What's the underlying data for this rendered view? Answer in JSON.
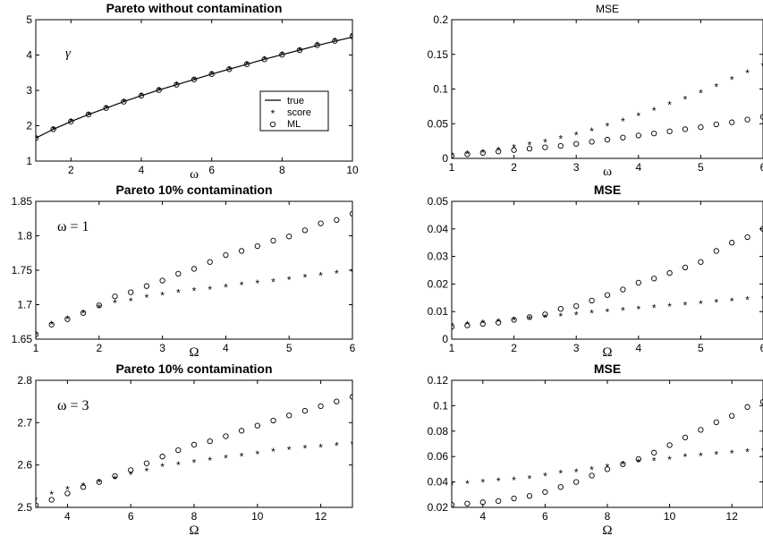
{
  "chart_data": [
    {
      "type": "line",
      "title": "Pareto without contamination",
      "xlabel": "ω",
      "ylabel": "",
      "annotation": "γ",
      "xlim": [
        1,
        10
      ],
      "ylim": [
        1,
        5
      ],
      "xticks": [
        2,
        4,
        6,
        8,
        10
      ],
      "yticks": [
        1,
        2,
        3,
        4,
        5
      ],
      "legend": {
        "placement": "right",
        "entries": [
          "true",
          "score",
          "ML"
        ]
      },
      "x": [
        1,
        1.5,
        2,
        2.5,
        3,
        3.5,
        4,
        4.5,
        5,
        5.5,
        6,
        6.5,
        7,
        7.5,
        8,
        8.5,
        9,
        9.5,
        10
      ],
      "series": [
        {
          "name": "true",
          "style": "line",
          "values": [
            1.65,
            1.9,
            2.12,
            2.32,
            2.5,
            2.68,
            2.85,
            3.01,
            3.16,
            3.31,
            3.46,
            3.6,
            3.74,
            3.88,
            4.01,
            4.14,
            4.27,
            4.39,
            4.51
          ]
        },
        {
          "name": "score",
          "style": "star",
          "values": [
            1.66,
            1.9,
            2.13,
            2.32,
            2.51,
            2.68,
            2.86,
            3.01,
            3.17,
            3.31,
            3.47,
            3.6,
            3.75,
            3.88,
            4.02,
            4.14,
            4.29,
            4.41,
            4.56
          ]
        },
        {
          "name": "ML",
          "style": "circle",
          "values": [
            1.65,
            1.9,
            2.12,
            2.32,
            2.5,
            2.68,
            2.85,
            3.01,
            3.16,
            3.31,
            3.46,
            3.6,
            3.74,
            3.88,
            4.01,
            4.14,
            4.28,
            4.4,
            4.53
          ]
        }
      ]
    },
    {
      "type": "scatter",
      "title": "MSE",
      "xlabel": "ω",
      "ylabel": "",
      "xlim": [
        1,
        6
      ],
      "ylim": [
        0,
        0.2
      ],
      "xticks": [
        1,
        2,
        3,
        4,
        5,
        6
      ],
      "yticks": [
        0,
        0.05,
        0.1,
        0.15,
        0.2
      ],
      "ytick_labels": [
        "0",
        "0.05",
        "0.1",
        "0.15",
        "0.2"
      ],
      "x": [
        1,
        1.25,
        1.5,
        1.75,
        2,
        2.25,
        2.5,
        2.75,
        3,
        3.25,
        3.5,
        3.75,
        4,
        4.25,
        4.5,
        4.75,
        5,
        5.25,
        5.5,
        5.75,
        6
      ],
      "series": [
        {
          "name": "score",
          "style": "star",
          "values": [
            0.005,
            0.007,
            0.009,
            0.012,
            0.016,
            0.02,
            0.024,
            0.029,
            0.034,
            0.04,
            0.047,
            0.054,
            0.062,
            0.07,
            0.078,
            0.086,
            0.095,
            0.104,
            0.114,
            0.124,
            0.134
          ]
        },
        {
          "name": "ML",
          "style": "circle",
          "values": [
            0.004,
            0.006,
            0.008,
            0.01,
            0.012,
            0.014,
            0.016,
            0.018,
            0.021,
            0.024,
            0.027,
            0.03,
            0.033,
            0.036,
            0.039,
            0.042,
            0.045,
            0.049,
            0.052,
            0.056,
            0.06
          ]
        }
      ]
    },
    {
      "type": "scatter",
      "title": "Pareto 10% contamination",
      "xlabel": "Ω",
      "ylabel": "",
      "annotation": "ω = 1",
      "xlim": [
        1,
        6
      ],
      "ylim": [
        1.65,
        1.85
      ],
      "xticks": [
        1,
        2,
        3,
        4,
        5,
        6
      ],
      "yticks": [
        1.65,
        1.7,
        1.75,
        1.8,
        1.85
      ],
      "ytick_labels": [
        "1.65",
        "1.7",
        "1.75",
        "1.8",
        "1.85"
      ],
      "x": [
        1,
        1.25,
        1.5,
        1.75,
        2,
        2.25,
        2.5,
        2.75,
        3,
        3.25,
        3.5,
        3.75,
        4,
        4.25,
        4.5,
        4.75,
        5,
        5.25,
        5.5,
        5.75,
        6
      ],
      "series": [
        {
          "name": "score",
          "style": "star",
          "values": [
            1.657,
            1.672,
            1.68,
            1.688,
            1.696,
            1.703,
            1.706,
            1.711,
            1.714,
            1.718,
            1.721,
            1.723,
            1.726,
            1.729,
            1.732,
            1.734,
            1.737,
            1.74,
            1.743,
            1.746,
            1.749
          ]
        },
        {
          "name": "ML",
          "style": "circle",
          "values": [
            1.657,
            1.671,
            1.679,
            1.688,
            1.699,
            1.712,
            1.718,
            1.727,
            1.735,
            1.745,
            1.752,
            1.762,
            1.772,
            1.778,
            1.785,
            1.793,
            1.799,
            1.808,
            1.818,
            1.823,
            1.832
          ]
        }
      ]
    },
    {
      "type": "scatter",
      "title": "MSE",
      "xlabel": "Ω",
      "ylabel": "",
      "xlim": [
        1,
        6
      ],
      "ylim": [
        0,
        0.05
      ],
      "xticks": [
        1,
        2,
        3,
        4,
        5,
        6
      ],
      "yticks": [
        0,
        0.01,
        0.02,
        0.03,
        0.04,
        0.05
      ],
      "ytick_labels": [
        "0",
        "0.01",
        "0.02",
        "0.03",
        "0.04",
        "0.05"
      ],
      "x": [
        1,
        1.25,
        1.5,
        1.75,
        2,
        2.25,
        2.5,
        2.75,
        3,
        3.25,
        3.5,
        3.75,
        4,
        4.25,
        4.5,
        4.75,
        5,
        5.25,
        5.5,
        5.75,
        6
      ],
      "series": [
        {
          "name": "score",
          "style": "star",
          "values": [
            0.005,
            0.0055,
            0.006,
            0.0065,
            0.007,
            0.0075,
            0.008,
            0.0085,
            0.009,
            0.0095,
            0.01,
            0.0105,
            0.011,
            0.0115,
            0.012,
            0.0125,
            0.013,
            0.0135,
            0.014,
            0.0145,
            0.015
          ]
        },
        {
          "name": "ML",
          "style": "circle",
          "values": [
            0.0045,
            0.005,
            0.0055,
            0.006,
            0.007,
            0.008,
            0.009,
            0.011,
            0.012,
            0.014,
            0.016,
            0.018,
            0.0205,
            0.022,
            0.024,
            0.026,
            0.028,
            0.032,
            0.035,
            0.037,
            0.04
          ]
        }
      ]
    },
    {
      "type": "scatter",
      "title": "Pareto 10% contamination",
      "xlabel": "Ω",
      "ylabel": "",
      "annotation": "ω = 3",
      "xlim": [
        3,
        13
      ],
      "ylim": [
        2.5,
        2.8
      ],
      "xticks": [
        4,
        6,
        8,
        10,
        12
      ],
      "yticks": [
        2.5,
        2.6,
        2.7,
        2.8
      ],
      "ytick_labels": [
        "2.5",
        "2.6",
        "2.7",
        "2.8"
      ],
      "x": [
        3,
        3.5,
        4,
        4.5,
        5,
        5.5,
        6,
        6.5,
        7,
        7.5,
        8,
        8.5,
        9,
        9.5,
        10,
        10.5,
        11,
        11.5,
        12,
        12.5,
        13
      ],
      "series": [
        {
          "name": "score",
          "style": "star",
          "values": [
            2.518,
            2.532,
            2.543,
            2.552,
            2.56,
            2.568,
            2.578,
            2.587,
            2.597,
            2.601,
            2.607,
            2.612,
            2.617,
            2.621,
            2.627,
            2.633,
            2.637,
            2.64,
            2.643,
            2.647,
            2.65
          ]
        },
        {
          "name": "ML",
          "style": "circle",
          "values": [
            2.505,
            2.518,
            2.533,
            2.548,
            2.56,
            2.574,
            2.588,
            2.604,
            2.62,
            2.635,
            2.648,
            2.656,
            2.668,
            2.681,
            2.693,
            2.705,
            2.717,
            2.728,
            2.739,
            2.75,
            2.761
          ]
        }
      ]
    },
    {
      "type": "scatter",
      "title": "MSE",
      "xlabel": "Ω",
      "ylabel": "",
      "xlim": [
        3,
        13
      ],
      "ylim": [
        0.02,
        0.12
      ],
      "xticks": [
        4,
        6,
        8,
        10,
        12
      ],
      "yticks": [
        0.02,
        0.04,
        0.06,
        0.08,
        0.1,
        0.12
      ],
      "ytick_labels": [
        "0.02",
        "0.04",
        "0.06",
        "0.08",
        "0.1",
        "0.12"
      ],
      "x": [
        3,
        3.5,
        4,
        4.5,
        5,
        5.5,
        6,
        6.5,
        7,
        7.5,
        8,
        8.5,
        9,
        9.5,
        10,
        10.5,
        11,
        11.5,
        12,
        12.5,
        13
      ],
      "series": [
        {
          "name": "score",
          "style": "star",
          "values": [
            0.038,
            0.039,
            0.04,
            0.041,
            0.042,
            0.043,
            0.045,
            0.047,
            0.048,
            0.05,
            0.052,
            0.054,
            0.056,
            0.057,
            0.058,
            0.06,
            0.061,
            0.062,
            0.063,
            0.064,
            0.065
          ]
        },
        {
          "name": "ML",
          "style": "circle",
          "values": [
            0.022,
            0.023,
            0.024,
            0.025,
            0.027,
            0.029,
            0.032,
            0.036,
            0.04,
            0.045,
            0.05,
            0.054,
            0.058,
            0.063,
            0.069,
            0.075,
            0.081,
            0.087,
            0.092,
            0.099,
            0.103
          ]
        }
      ]
    }
  ]
}
